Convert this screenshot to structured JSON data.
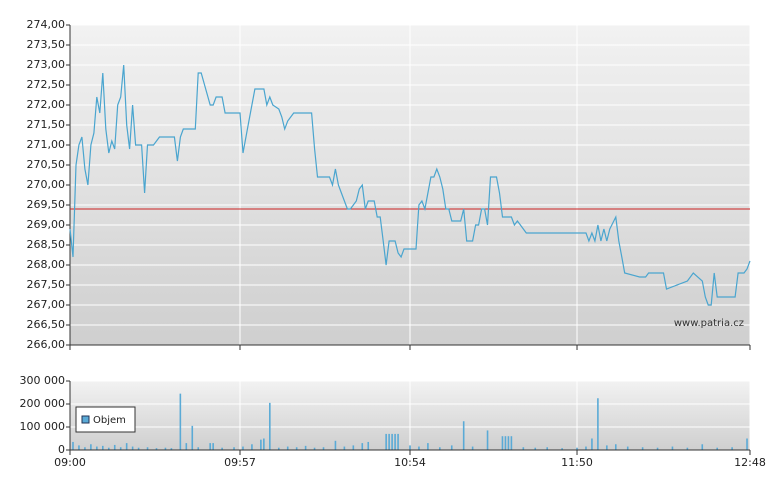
{
  "chart_data": [
    {
      "type": "line",
      "xlim": [
        0,
        228
      ],
      "ylim": [
        266,
        274
      ],
      "yticks": [
        {
          "value": 266,
          "label": "266,00"
        },
        {
          "value": 266.5,
          "label": "266,50"
        },
        {
          "value": 267,
          "label": "267,00"
        },
        {
          "value": 267.5,
          "label": "267,50"
        },
        {
          "value": 268,
          "label": "268,00"
        },
        {
          "value": 268.5,
          "label": "268,50"
        },
        {
          "value": 269,
          "label": "269,00"
        },
        {
          "value": 269.5,
          "label": "269,50"
        },
        {
          "value": 270,
          "label": "270,00"
        },
        {
          "value": 270.5,
          "label": "270,50"
        },
        {
          "value": 271,
          "label": "271,00"
        },
        {
          "value": 271.5,
          "label": "271,50"
        },
        {
          "value": 272,
          "label": "272,00"
        },
        {
          "value": 272.5,
          "label": "272,50"
        },
        {
          "value": 273,
          "label": "273,00"
        },
        {
          "value": 273.5,
          "label": "273,50"
        },
        {
          "value": 274,
          "label": "274,00"
        }
      ],
      "grid": true,
      "reference_line": {
        "value": 269.4,
        "color": "#cc2222"
      },
      "watermark": "www.patria.cz",
      "x": [
        0,
        1,
        2,
        3,
        4,
        5,
        6,
        7,
        8,
        9,
        10,
        11,
        12,
        13,
        14,
        15,
        16,
        17,
        18,
        19,
        20,
        21,
        22,
        24,
        25,
        26,
        28,
        30,
        35,
        36,
        37,
        38,
        42,
        43,
        44,
        47,
        48,
        49,
        51,
        52,
        57,
        58,
        60,
        61,
        62,
        65,
        66,
        67,
        68,
        70,
        71,
        72,
        73,
        75,
        81,
        82,
        83,
        87,
        88,
        89,
        90,
        91,
        92,
        93,
        94,
        96,
        97,
        98,
        99,
        100,
        102,
        103,
        104,
        105,
        106,
        107,
        109,
        110,
        111,
        112,
        116,
        117,
        118,
        119,
        120,
        121,
        122,
        123,
        124,
        125,
        126,
        127,
        128,
        131,
        132,
        133,
        135,
        136,
        137,
        138,
        139,
        140,
        141,
        143,
        144,
        145,
        148,
        149,
        150,
        151,
        153,
        173,
        174,
        175,
        176,
        177,
        178,
        179,
        180,
        181,
        183,
        184,
        185,
        186,
        191,
        193,
        194,
        199,
        200,
        207,
        209,
        212,
        213,
        214,
        215,
        216,
        217,
        223,
        224,
        226,
        227,
        228
      ],
      "series": [
        {
          "color": "#4aa5cf",
          "values": [
            268.9,
            268.2,
            270.5,
            271.0,
            271.2,
            270.4,
            270.0,
            271.0,
            271.3,
            272.2,
            271.8,
            272.8,
            271.4,
            270.8,
            271.1,
            270.9,
            272.0,
            272.2,
            273.0,
            271.5,
            270.9,
            272.0,
            271.0,
            271.0,
            269.8,
            271.0,
            271.0,
            271.2,
            271.2,
            270.6,
            271.2,
            271.4,
            271.4,
            272.8,
            272.8,
            272.0,
            272.0,
            272.2,
            272.2,
            271.8,
            271.8,
            270.8,
            271.6,
            272.0,
            272.4,
            272.4,
            272.0,
            272.2,
            272.0,
            271.9,
            271.7,
            271.4,
            271.6,
            271.8,
            271.8,
            270.9,
            270.2,
            270.2,
            270.0,
            270.4,
            270.0,
            269.8,
            269.6,
            269.4,
            269.4,
            269.6,
            269.9,
            270.0,
            269.4,
            269.6,
            269.6,
            269.2,
            269.2,
            268.6,
            268.0,
            268.6,
            268.6,
            268.3,
            268.2,
            268.4,
            268.4,
            269.5,
            269.6,
            269.4,
            269.8,
            270.2,
            270.2,
            270.4,
            270.2,
            269.9,
            269.4,
            269.4,
            269.1,
            269.1,
            269.4,
            268.6,
            268.6,
            269.0,
            269.0,
            269.4,
            269.4,
            269.0,
            270.2,
            270.2,
            269.8,
            269.2,
            269.2,
            269.0,
            269.1,
            269.0,
            268.8,
            268.8,
            268.6,
            268.8,
            268.6,
            269.0,
            268.6,
            268.9,
            268.6,
            268.9,
            269.2,
            268.6,
            268.2,
            267.8,
            267.7,
            267.7,
            267.8,
            267.8,
            267.4,
            267.6,
            267.8,
            267.6,
            267.2,
            267.0,
            267.0,
            267.8,
            267.2,
            267.2,
            267.8,
            267.8,
            267.9,
            268.1
          ]
        }
      ]
    },
    {
      "type": "bar",
      "xlim": [
        0,
        228
      ],
      "xticks": [
        {
          "value": 0,
          "label": "09:00"
        },
        {
          "value": 57,
          "label": "09:57"
        },
        {
          "value": 114,
          "label": "10:54"
        },
        {
          "value": 170,
          "label": "11:50"
        },
        {
          "value": 228,
          "label": "12:48"
        }
      ],
      "ylim": [
        0,
        300000
      ],
      "yticks": [
        0,
        {
          "value": 100000,
          "label": "100 000"
        },
        {
          "value": 200000,
          "label": "200 000"
        },
        {
          "value": 300000,
          "label": "300 000"
        }
      ],
      "grid": true,
      "legend": "lower left",
      "x": [
        1,
        3,
        5,
        7,
        9,
        11,
        13,
        15,
        17,
        19,
        21,
        23,
        26,
        29,
        32,
        34,
        37,
        39,
        41,
        43,
        47,
        48,
        51,
        55,
        58,
        61,
        64,
        65,
        67,
        70,
        73,
        76,
        79,
        82,
        85,
        89,
        92,
        95,
        98,
        100,
        106,
        107,
        108,
        109,
        110,
        114,
        117,
        120,
        124,
        128,
        132,
        135,
        140,
        145,
        146,
        147,
        148,
        152,
        156,
        160,
        165,
        170,
        173,
        175,
        177,
        180,
        183,
        187,
        192,
        197,
        202,
        207,
        212,
        217,
        222,
        227
      ],
      "series": [
        {
          "name": "Objem",
          "color": "#5aaad6",
          "values": [
            35000,
            20000,
            12000,
            25000,
            15000,
            18000,
            10000,
            22000,
            12000,
            30000,
            15000,
            10000,
            12000,
            8000,
            10000,
            8000,
            245000,
            30000,
            105000,
            12000,
            30000,
            30000,
            10000,
            12000,
            15000,
            25000,
            45000,
            50000,
            205000,
            10000,
            15000,
            12000,
            18000,
            10000,
            12000,
            40000,
            15000,
            20000,
            30000,
            35000,
            70000,
            70000,
            70000,
            70000,
            70000,
            20000,
            15000,
            30000,
            12000,
            20000,
            125000,
            15000,
            85000,
            60000,
            60000,
            60000,
            60000,
            12000,
            10000,
            12000,
            8000,
            10000,
            15000,
            50000,
            225000,
            20000,
            25000,
            15000,
            12000,
            10000,
            15000,
            10000,
            25000,
            10000,
            12000,
            50000
          ]
        }
      ]
    }
  ]
}
